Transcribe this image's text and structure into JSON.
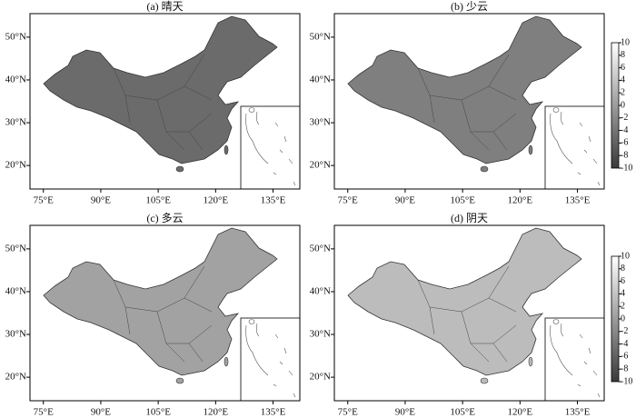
{
  "panels": [
    {
      "title": "(a) 晴天",
      "fill": "#6b6b6b"
    },
    {
      "title": "(b) 少云",
      "fill": "#7f7f7f"
    },
    {
      "title": "(c) 多云",
      "fill": "#a2a2a2"
    },
    {
      "title": "(d) 阴天",
      "fill": "#bcbcbc"
    }
  ],
  "lonlim": [
    71.5,
    142
  ],
  "latlim": [
    14.5,
    55.5
  ],
  "lon_ticks": [
    {
      "value": 75,
      "label": "75°E"
    },
    {
      "value": 90,
      "label": "90°E"
    },
    {
      "value": 105,
      "label": "105°E"
    },
    {
      "value": 120,
      "label": "120°E"
    },
    {
      "value": 135,
      "label": "135°E"
    }
  ],
  "lat_ticks": [
    {
      "value": 20,
      "label": "20°N"
    },
    {
      "value": 30,
      "label": "30°N"
    },
    {
      "value": 40,
      "label": "40°N"
    },
    {
      "value": 50,
      "label": "50°N"
    }
  ],
  "colorbar": {
    "lim": [
      -10,
      10
    ],
    "ticks": [
      10,
      8,
      6,
      4,
      2,
      0,
      -2,
      -4,
      -6,
      -8,
      -10
    ]
  }
}
